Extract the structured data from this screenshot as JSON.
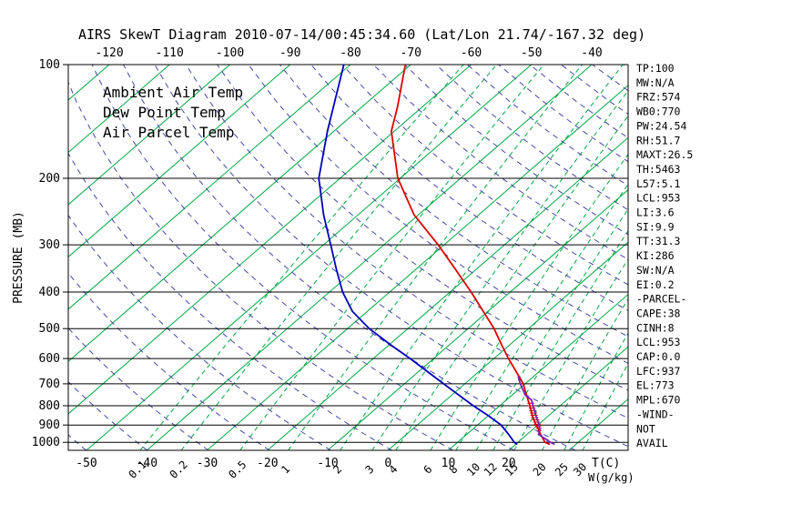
{
  "title": "AIRS SkewT Diagram 2010-07-14/00:45:34.60 (Lat/Lon 21.74/-167.32 deg)",
  "colors": {
    "temp_red": "#dd0000",
    "dew_blue": "#0000bb",
    "parcel_purple": "#7722bb",
    "green": "#00a843",
    "adiabat_purple": "#4646aa",
    "axis_black": "#000000"
  },
  "legend": [
    {
      "id": "ambient-air-temp",
      "label": "Ambient Air Temp",
      "color": "#dd0000"
    },
    {
      "id": "dew-point-temp",
      "label": "Dew Point Temp",
      "color": "#0000bb"
    },
    {
      "id": "air-parcel-temp",
      "label": "Air Parcel Temp",
      "color": "#7722bb"
    }
  ],
  "stats_panel": {
    "lines": [
      "TP:100",
      "MW:N/A",
      "FRZ:574",
      "WB0:770",
      "PW:24.54",
      "RH:51.7",
      "MAXT:26.5",
      "TH:5463",
      "L57:5.1",
      "LCL:953",
      "LI:3.6",
      "SI:9.9",
      "TT:31.3",
      "KI:286",
      "SW:N/A",
      "EI:0.2",
      "-PARCEL-",
      "CAPE:38",
      "CINH:8",
      "LCL:953",
      "CAP:0.0",
      "LFC:937",
      "EL:773",
      "MPL:670",
      "-WIND-",
      "NOT",
      "AVAIL"
    ]
  },
  "chart_data": {
    "type": "line",
    "title": "AIRS SkewT Diagram 2010-07-14/00:45:34.60 (Lat/Lon 21.74/-167.32 deg)",
    "ylabel": "PRESSURE (MB)",
    "xlabel_temp": "T(C)",
    "xlabel_mixing": "W(g/kg)",
    "ylim": [
      1050,
      100
    ],
    "axes": {
      "pressure_ticks": [
        100,
        200,
        300,
        400,
        500,
        600,
        700,
        800,
        900,
        1000
      ],
      "top_temp_ticks": [
        -120,
        -110,
        -100,
        -90,
        -80,
        -70,
        -60,
        -50,
        -40
      ],
      "bottom_temp_ticks": [
        -50,
        -40,
        -30,
        -20,
        -10,
        0,
        10,
        20
      ]
    },
    "background": {
      "isotherms_c": {
        "min": -130,
        "max": 40,
        "step": 10
      },
      "dry_adiabats_k": {
        "min": 220,
        "max": 460,
        "step": 10
      },
      "mixing_ratio_lines": [
        0.1,
        0.2,
        0.5,
        1,
        2,
        3,
        4,
        6,
        8,
        10,
        12,
        15,
        20,
        25,
        30
      ]
    },
    "series": [
      {
        "id": "ambient-air-temp",
        "name": "Ambient Air Temp",
        "color": "#dd0000",
        "points": [
          [
            1013,
            25.7
          ],
          [
            1000,
            24.5
          ],
          [
            950,
            22.1
          ],
          [
            925,
            21.0
          ],
          [
            900,
            19.7
          ],
          [
            850,
            17.3
          ],
          [
            800,
            15.0
          ],
          [
            750,
            12.4
          ],
          [
            700,
            9.7
          ],
          [
            650,
            6.2
          ],
          [
            600,
            2.4
          ],
          [
            550,
            -1.5
          ],
          [
            500,
            -5.7
          ],
          [
            450,
            -10.8
          ],
          [
            400,
            -16.5
          ],
          [
            350,
            -23.2
          ],
          [
            300,
            -31.0
          ],
          [
            250,
            -40.7
          ],
          [
            200,
            -50.4
          ],
          [
            150,
            -60.5
          ],
          [
            130,
            -64.0
          ],
          [
            100,
            -70.9
          ]
        ]
      },
      {
        "id": "dew-point-temp",
        "name": "Dew Point Temp",
        "color": "#0000bb",
        "points": [
          [
            1013,
            20.3
          ],
          [
            1000,
            19.4
          ],
          [
            950,
            16.8
          ],
          [
            900,
            13.9
          ],
          [
            850,
            10.0
          ],
          [
            800,
            5.6
          ],
          [
            750,
            1.2
          ],
          [
            700,
            -3.5
          ],
          [
            650,
            -8.5
          ],
          [
            600,
            -13.9
          ],
          [
            550,
            -20.0
          ],
          [
            500,
            -26.4
          ],
          [
            450,
            -32.5
          ],
          [
            400,
            -37.8
          ],
          [
            350,
            -43.0
          ],
          [
            300,
            -48.8
          ],
          [
            250,
            -55.7
          ],
          [
            200,
            -63.5
          ],
          [
            150,
            -71.1
          ],
          [
            100,
            -81.1
          ]
        ]
      },
      {
        "id": "air-parcel-temp",
        "name": "Air Parcel Temp",
        "color": "#7722bb",
        "points": [
          [
            1013,
            26.5
          ],
          [
            1000,
            25.4
          ],
          [
            975,
            23.6
          ],
          [
            953,
            21.9
          ],
          [
            925,
            21.2
          ],
          [
            900,
            20.2
          ],
          [
            850,
            17.9
          ],
          [
            800,
            15.5
          ],
          [
            773,
            14.2
          ],
          [
            750,
            12.2
          ],
          [
            700,
            9.2
          ],
          [
            670,
            7.5
          ]
        ]
      }
    ],
    "cape_hatch": {
      "p_bottom": 932,
      "p_top": 788
    }
  }
}
